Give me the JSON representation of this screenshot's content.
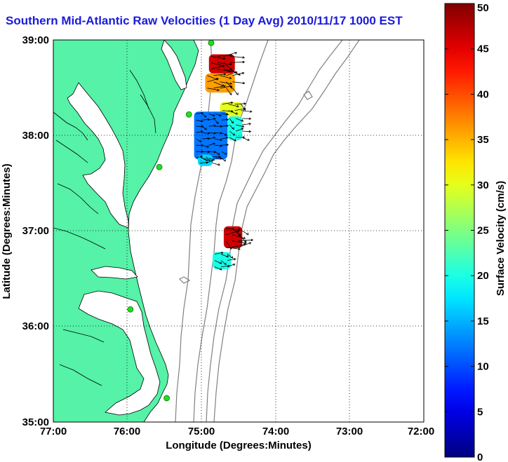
{
  "title": "Southern Mid-Atlantic Raw Velocities (1 Day Avg) 2010/11/17 1000 EST",
  "xlabel": "Longitude (Degrees:Minutes)",
  "ylabel": "Latitude (Degrees:Minutes)",
  "x_ticks": [
    "77:00",
    "76:00",
    "75:00",
    "74:00",
    "73:00",
    "72:00"
  ],
  "y_ticks": [
    "39:00",
    "38:00",
    "37:00",
    "36:00",
    "35:00"
  ],
  "colorbar": {
    "label": "Surface Velocity (cm/s)",
    "ticks": [
      "50",
      "45",
      "40",
      "35",
      "30",
      "25",
      "20",
      "15",
      "10",
      "5",
      "0"
    ],
    "min": 0,
    "max": 50
  },
  "colors": {
    "land": "#55f2a8",
    "coast": "#000000",
    "bathymetry": "#808080",
    "title": "#1a1adc",
    "station": "#22dd22"
  },
  "chart_data": {
    "type": "map",
    "xlim": [
      -77.0,
      -72.0
    ],
    "ylim": [
      35.0,
      39.0
    ],
    "grid": true,
    "stations": [
      {
        "lon": -74.87,
        "lat": 38.97
      },
      {
        "lon": -75.17,
        "lat": 38.22
      },
      {
        "lon": -75.57,
        "lat": 37.67
      },
      {
        "lon": -75.96,
        "lat": 36.18
      },
      {
        "lon": -75.47,
        "lat": 35.25
      }
    ],
    "velocity_patches": [
      {
        "lon_min": -74.9,
        "lon_max": -74.55,
        "lat_min": 38.65,
        "lat_max": 38.85,
        "speed": 46
      },
      {
        "lon_min": -74.95,
        "lon_max": -74.55,
        "lat_min": 38.45,
        "lat_max": 38.65,
        "speed": 36
      },
      {
        "lon_min": -74.75,
        "lon_max": -74.45,
        "lat_min": 38.2,
        "lat_max": 38.35,
        "speed": 30
      },
      {
        "lon_min": -75.1,
        "lon_max": -74.65,
        "lat_min": 37.75,
        "lat_max": 38.25,
        "speed": 12
      },
      {
        "lon_min": -74.65,
        "lon_max": -74.45,
        "lat_min": 37.95,
        "lat_max": 38.2,
        "speed": 20
      },
      {
        "lon_min": -75.05,
        "lon_max": -74.85,
        "lat_min": 37.68,
        "lat_max": 37.8,
        "speed": 17
      },
      {
        "lon_min": -74.7,
        "lon_max": -74.45,
        "lat_min": 36.82,
        "lat_max": 37.05,
        "speed": 46
      },
      {
        "lon_min": -74.85,
        "lon_max": -74.6,
        "lat_min": 36.6,
        "lat_max": 36.78,
        "speed": 20
      }
    ]
  }
}
